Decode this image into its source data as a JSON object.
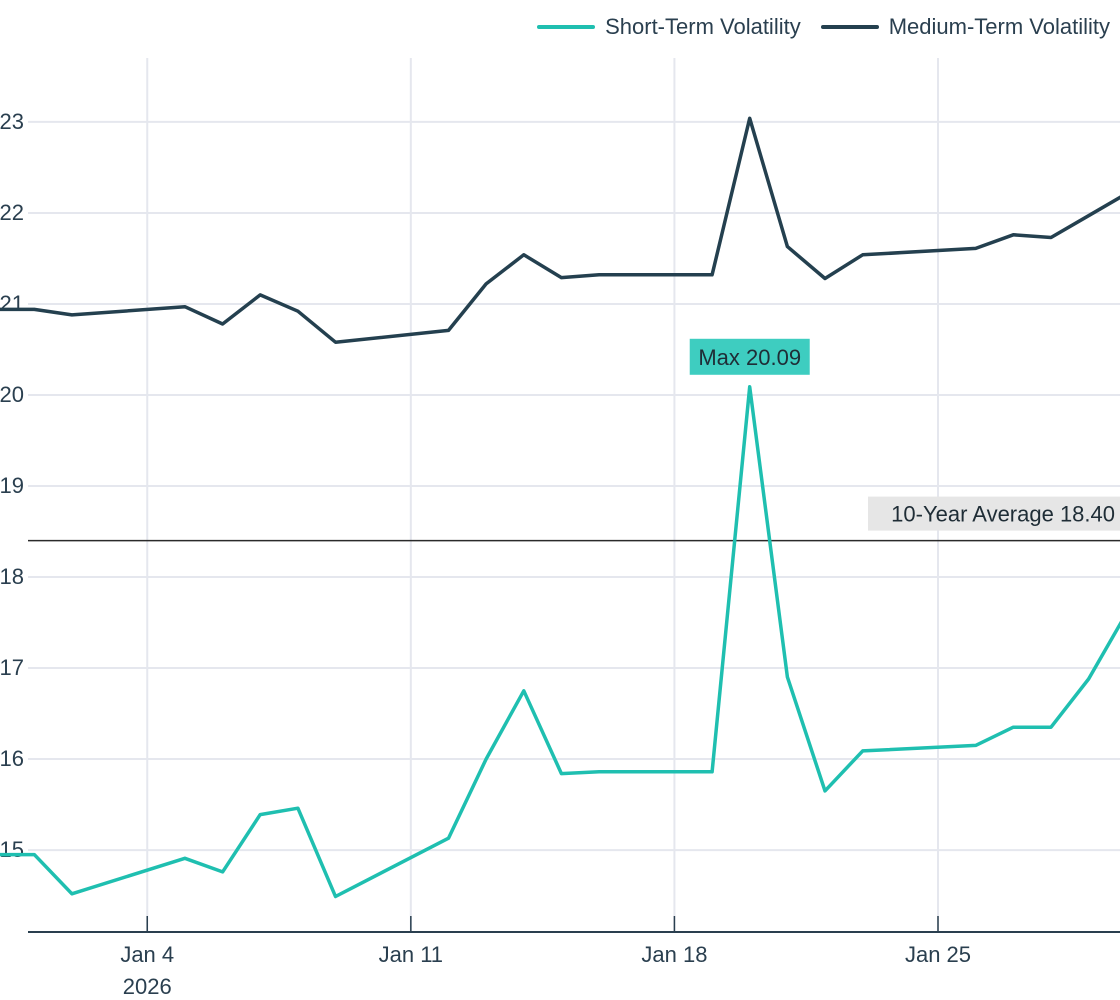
{
  "chart_data": {
    "type": "line",
    "x_tick_labels": [
      {
        "date": "2026-01-04",
        "line1": "Jan 4",
        "line2": "2026"
      },
      {
        "date": "2026-01-11",
        "line1": "Jan 11",
        "line2": ""
      },
      {
        "date": "2026-01-18",
        "line1": "Jan 18",
        "line2": ""
      },
      {
        "date": "2026-01-25",
        "line1": "Jan 25",
        "line2": ""
      }
    ],
    "y_ticks": [
      15,
      16,
      17,
      18,
      19,
      20,
      21,
      22,
      23
    ],
    "xlim": [
      "2025-12-31T20:00",
      "2026-01-29T20:00"
    ],
    "ylim": [
      14.1,
      23.9
    ],
    "grid": true,
    "legend_position": "top-right",
    "series": [
      {
        "name": "Short-Term Volatility",
        "color": "#1fbfb0",
        "x": [
          "2025-12-31",
          "2026-01-01",
          "2026-01-02",
          "2026-01-05",
          "2026-01-06",
          "2026-01-07",
          "2026-01-08",
          "2026-01-09",
          "2026-01-12",
          "2026-01-13",
          "2026-01-14",
          "2026-01-15",
          "2026-01-16",
          "2026-01-19",
          "2026-01-20",
          "2026-01-21",
          "2026-01-22",
          "2026-01-23",
          "2026-01-26",
          "2026-01-27",
          "2026-01-28",
          "2026-01-29",
          "2026-01-30"
        ],
        "values": [
          14.95,
          14.95,
          14.52,
          14.91,
          14.76,
          15.39,
          15.46,
          14.49,
          15.13,
          16.0,
          16.75,
          15.84,
          15.86,
          15.86,
          20.09,
          16.9,
          15.65,
          16.09,
          16.15,
          16.35,
          16.35,
          16.88,
          17.6
        ]
      },
      {
        "name": "Medium-Term Volatility",
        "color": "#24404f",
        "x": [
          "2025-12-31",
          "2026-01-01",
          "2026-01-02",
          "2026-01-05",
          "2026-01-06",
          "2026-01-07",
          "2026-01-08",
          "2026-01-09",
          "2026-01-12",
          "2026-01-13",
          "2026-01-14",
          "2026-01-15",
          "2026-01-16",
          "2026-01-19",
          "2026-01-20",
          "2026-01-21",
          "2026-01-22",
          "2026-01-23",
          "2026-01-26",
          "2026-01-27",
          "2026-01-28",
          "2026-01-29",
          "2026-01-30"
        ],
        "values": [
          20.94,
          20.94,
          20.88,
          20.97,
          20.78,
          21.1,
          20.92,
          20.58,
          20.71,
          21.22,
          21.54,
          21.29,
          21.32,
          21.32,
          23.04,
          21.63,
          21.28,
          21.54,
          21.61,
          21.76,
          21.73,
          21.97,
          22.21
        ]
      }
    ],
    "annotations": [
      {
        "text": "Max 20.09",
        "x": "2026-01-20",
        "y": 20.09,
        "background": "#3ecdc0"
      },
      {
        "text": "10-Year Average 18.40",
        "y": 18.4,
        "background": "#e6e6e6",
        "position": "right"
      }
    ],
    "hlines": [
      {
        "y": 18.4,
        "color": "#2a2a2a"
      }
    ]
  }
}
